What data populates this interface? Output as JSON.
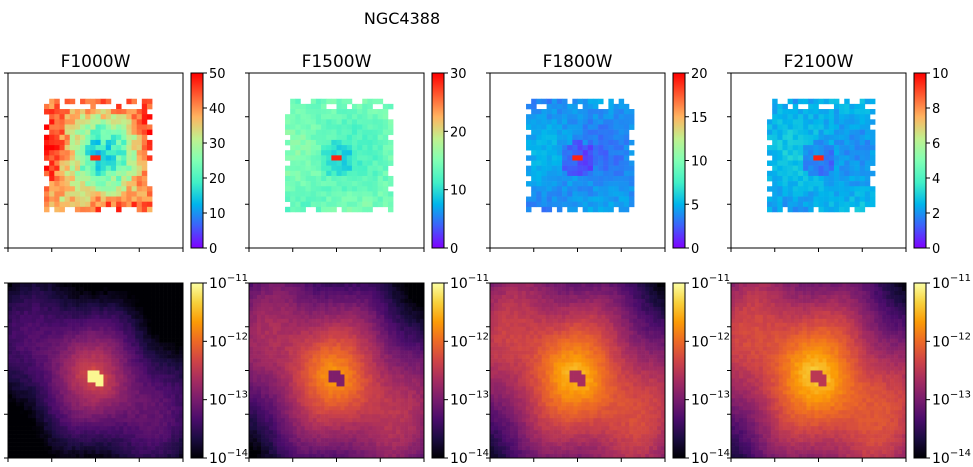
{
  "figure": {
    "title": "NGC4388",
    "columns": [
      "F1000W",
      "F1500W",
      "F1800W",
      "F2100W"
    ]
  },
  "colors": {
    "rainbow_map": [
      "#8000ff",
      "#3f5ffa",
      "#00b5eb",
      "#41f0c6",
      "#80ffb4",
      "#c0f08e",
      "#ffb360",
      "#ff5a30",
      "#ff0000"
    ],
    "inferno_map": [
      "#000004",
      "#1b0c41",
      "#4a0c6b",
      "#781c6d",
      "#a52c60",
      "#cf4446",
      "#ed6925",
      "#fb9b06",
      "#f7d13d",
      "#fcffa4"
    ],
    "axes": "#000000",
    "background": "#ffffff"
  },
  "chart_data": [
    {
      "type": "heatmap",
      "row": "top",
      "title": "F1000W",
      "colormap": "rainbow",
      "colorbar": {
        "ticks": [
          "0",
          "10",
          "20",
          "30",
          "40",
          "50"
        ],
        "min": 0,
        "max": 50,
        "scale": "linear"
      },
      "axis_ticks_labeled": false
    },
    {
      "type": "heatmap",
      "row": "top",
      "title": "F1500W",
      "colormap": "rainbow",
      "colorbar": {
        "ticks": [
          "0",
          "10",
          "20",
          "30"
        ],
        "min": 0,
        "max": 30,
        "scale": "linear"
      },
      "axis_ticks_labeled": false
    },
    {
      "type": "heatmap",
      "row": "top",
      "title": "F1800W",
      "colormap": "rainbow",
      "colorbar": {
        "ticks": [
          "0",
          "5",
          "10",
          "15",
          "20"
        ],
        "min": 0,
        "max": 20,
        "scale": "linear"
      },
      "axis_ticks_labeled": false
    },
    {
      "type": "heatmap",
      "row": "top",
      "title": "F2100W",
      "colormap": "rainbow",
      "colorbar": {
        "ticks": [
          "0",
          "2",
          "4",
          "6",
          "8",
          "10"
        ],
        "min": 0,
        "max": 10,
        "scale": "linear"
      },
      "axis_ticks_labeled": false
    },
    {
      "type": "heatmap",
      "row": "bottom",
      "title": "",
      "colormap": "inferno",
      "colorbar": {
        "ticks": [
          "−14",
          "−13",
          "−12",
          "−11"
        ],
        "tick_base": "10",
        "min": 1e-14,
        "max": 1e-11,
        "scale": "log"
      },
      "axis_ticks_labeled": false
    },
    {
      "type": "heatmap",
      "row": "bottom",
      "title": "",
      "colormap": "inferno",
      "colorbar": {
        "ticks": [
          "−14",
          "−13",
          "−12",
          "−11"
        ],
        "tick_base": "10",
        "min": 1e-14,
        "max": 1e-11,
        "scale": "log"
      },
      "axis_ticks_labeled": false
    },
    {
      "type": "heatmap",
      "row": "bottom",
      "title": "",
      "colormap": "inferno",
      "colorbar": {
        "ticks": [
          "−14",
          "−13",
          "−12",
          "−11"
        ],
        "tick_base": "10",
        "min": 1e-14,
        "max": 1e-11,
        "scale": "log"
      },
      "axis_ticks_labeled": false
    },
    {
      "type": "heatmap",
      "row": "bottom",
      "title": "",
      "colormap": "inferno",
      "colorbar": {
        "ticks": [
          "−14",
          "−13",
          "−12",
          "−11"
        ],
        "tick_base": "10",
        "min": 1e-14,
        "max": 1e-11,
        "scale": "log"
      },
      "axis_ticks_labeled": false
    }
  ]
}
